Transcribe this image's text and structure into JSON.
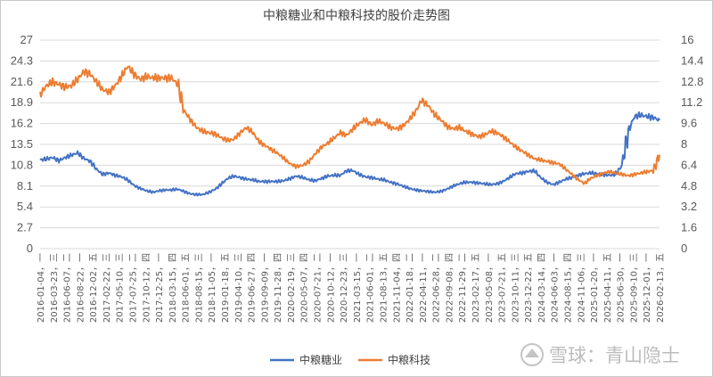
{
  "chart_data": {
    "type": "line",
    "title": "中粮糖业和中粮科技的股价走势图",
    "xlabel": "",
    "ylabel": "",
    "y_left": {
      "min": 0,
      "max": 27,
      "ticks": [
        "0",
        "2.7",
        "5.4",
        "8.1",
        "10.8",
        "13.5",
        "16.2",
        "18.9",
        "21.6",
        "24.3",
        "27"
      ]
    },
    "y_right": {
      "min": 0,
      "max": 16,
      "ticks": [
        "0",
        "1.6",
        "3.2",
        "4.8",
        "6.4",
        "8",
        "9.6",
        "11.2",
        "12.8",
        "14.4",
        "16"
      ]
    },
    "x_tick_labels": [
      "2016-01-04，一",
      "2016-03-23，三",
      "2016-06-07，二",
      "2016-08-22，一",
      "2016-12-02，五",
      "2017-02-22，三",
      "2017-05-10，三",
      "2017-07-25，二",
      "2017-10-12，四",
      "2017-12-25，一",
      "2018-03-15，四",
      "2018-06-01，五",
      "2018-08-15，三",
      "2018-11-05，一",
      "2019-01-18，五",
      "2019-04-10，三",
      "2019-06-27，四",
      "2019-09-09，一",
      "2019-11-28，四",
      "2020-02-19，三",
      "2020-05-07，四",
      "2020-07-21，二",
      "2020-10-12，一",
      "2020-12-23，三",
      "2021-03-15，一",
      "2021-06-01，二",
      "2021-08-13，五",
      "2021-11-04，四",
      "2022-01-18，二",
      "2022-04-11，一",
      "2022-06-28，二",
      "2022-09-08，四",
      "2022-11-29，二",
      "2023-02-17，五",
      "2023-05-08，一",
      "2023-07-21，五",
      "2023-10-11，三",
      "2023-12-22，五",
      "2024-03-14，四",
      "2024-06-03，一",
      "2024-08-15，四",
      "2024-11-06，三",
      "2025-01-20，一",
      "2025-04-11，五",
      "2025-06-30，一",
      "2025-09-10，三",
      "2025-12-01，一",
      "2026-02-13，五"
    ],
    "legend_position": "bottom",
    "grid": true,
    "series": [
      {
        "name": "中粮糖业",
        "axis": "left",
        "color": "#4472c4",
        "values": [
          11.5,
          11.6,
          11.8,
          11.4,
          11.8,
          12.1,
          12.4,
          11.7,
          11.3,
          10.3,
          9.6,
          9.8,
          9.5,
          9.3,
          8.9,
          8.2,
          7.8,
          7.5,
          7.3,
          7.5,
          7.6,
          7.6,
          7.7,
          7.4,
          7.1,
          7.0,
          7.0,
          7.3,
          7.7,
          8.4,
          9.1,
          9.4,
          9.2,
          9.0,
          8.9,
          8.7,
          8.7,
          8.7,
          8.7,
          8.8,
          9.1,
          9.4,
          9.2,
          8.9,
          8.8,
          9.1,
          9.4,
          9.5,
          9.5,
          10.1,
          10.1,
          9.6,
          9.3,
          9.2,
          9.0,
          8.9,
          8.6,
          8.4,
          8.1,
          7.8,
          7.6,
          7.5,
          7.4,
          7.3,
          7.4,
          7.7,
          8.1,
          8.4,
          8.6,
          8.6,
          8.5,
          8.4,
          8.3,
          8.4,
          8.7,
          9.2,
          9.7,
          9.8,
          10.0,
          10.1,
          9.2,
          8.6,
          8.3,
          8.6,
          9.0,
          9.2,
          9.5,
          9.7,
          9.8,
          9.7,
          9.6,
          9.5,
          9.6,
          10.8,
          15.2,
          17.1,
          17.3,
          17.1,
          17.0,
          16.6
        ]
      },
      {
        "name": "中粮科技",
        "axis": "right",
        "color": "#ed7d31",
        "values": [
          11.8,
          12.5,
          12.8,
          12.6,
          12.4,
          12.5,
          13.0,
          13.6,
          13.4,
          12.8,
          12.2,
          12.0,
          12.5,
          13.2,
          14.0,
          13.4,
          13.0,
          13.2,
          13.1,
          13.1,
          13.1,
          13.1,
          12.6,
          10.6,
          9.9,
          9.3,
          9.0,
          8.9,
          8.8,
          8.5,
          8.3,
          8.4,
          8.9,
          9.3,
          8.9,
          8.2,
          7.9,
          7.6,
          7.3,
          6.9,
          6.5,
          6.3,
          6.4,
          6.7,
          7.3,
          7.8,
          8.1,
          8.5,
          8.9,
          8.7,
          9.2,
          9.6,
          9.9,
          9.5,
          9.8,
          9.6,
          9.3,
          9.2,
          9.4,
          9.9,
          10.5,
          11.4,
          11.0,
          10.3,
          9.9,
          9.4,
          9.2,
          9.3,
          9.0,
          8.8,
          8.6,
          8.7,
          9.0,
          8.9,
          8.6,
          8.2,
          7.8,
          7.5,
          7.2,
          6.9,
          6.8,
          6.7,
          6.6,
          6.5,
          6.1,
          5.7,
          5.3,
          5.0,
          5.4,
          5.6,
          5.8,
          5.9,
          5.8,
          5.7,
          5.6,
          5.7,
          5.8,
          5.9,
          6.0,
          7.2
        ]
      }
    ]
  },
  "watermark": {
    "brand": "雪球：青山隐士"
  }
}
